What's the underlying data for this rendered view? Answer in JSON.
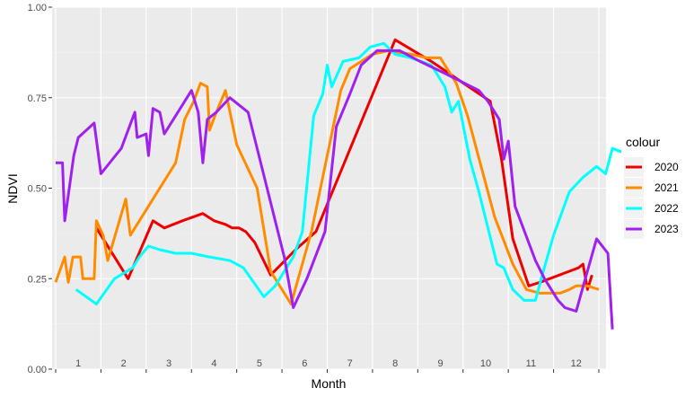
{
  "chart_data": {
    "type": "line",
    "xlabel": "Month",
    "ylabel": "NDVI",
    "xlim": [
      0,
      12
    ],
    "ylim": [
      0,
      1
    ],
    "x_ticks": [
      "1",
      "2",
      "3",
      "4",
      "5",
      "6",
      "7",
      "8",
      "9",
      "10",
      "11",
      "12"
    ],
    "y_ticks": [
      {
        "value": 0.0,
        "label": "0.00"
      },
      {
        "value": 0.25,
        "label": "0.25"
      },
      {
        "value": 0.5,
        "label": "0.50"
      },
      {
        "value": 0.75,
        "label": "0.75"
      },
      {
        "value": 1.0,
        "label": "1.00"
      }
    ],
    "grid": true,
    "legend": {
      "title": "colour",
      "position": "right"
    },
    "series": [
      {
        "name": "2020",
        "color": "#EE0000",
        "points": [
          [
            0.9,
            0.39
          ],
          [
            1.6,
            0.25
          ],
          [
            2.15,
            0.41
          ],
          [
            2.4,
            0.39
          ],
          [
            2.8,
            0.41
          ],
          [
            3.25,
            0.43
          ],
          [
            3.5,
            0.41
          ],
          [
            3.75,
            0.4
          ],
          [
            3.9,
            0.39
          ],
          [
            4.05,
            0.39
          ],
          [
            4.2,
            0.38
          ],
          [
            4.4,
            0.35
          ],
          [
            4.75,
            0.26
          ],
          [
            5.3,
            0.33
          ],
          [
            5.75,
            0.38
          ],
          [
            7.5,
            0.91
          ],
          [
            8.3,
            0.85
          ],
          [
            9.6,
            0.74
          ],
          [
            9.85,
            0.58
          ],
          [
            10.1,
            0.36
          ],
          [
            10.45,
            0.23
          ],
          [
            10.7,
            0.24
          ],
          [
            11.55,
            0.28
          ],
          [
            11.65,
            0.29
          ],
          [
            11.75,
            0.22
          ],
          [
            11.85,
            0.26
          ]
        ]
      },
      {
        "name": "2021",
        "color": "#FF8C00",
        "points": [
          [
            0.0,
            0.24
          ],
          [
            0.2,
            0.31
          ],
          [
            0.28,
            0.24
          ],
          [
            0.38,
            0.31
          ],
          [
            0.55,
            0.31
          ],
          [
            0.6,
            0.25
          ],
          [
            0.85,
            0.25
          ],
          [
            0.9,
            0.41
          ],
          [
            1.05,
            0.37
          ],
          [
            1.15,
            0.3
          ],
          [
            1.55,
            0.47
          ],
          [
            1.65,
            0.37
          ],
          [
            2.1,
            0.46
          ],
          [
            2.65,
            0.57
          ],
          [
            2.85,
            0.69
          ],
          [
            3.05,
            0.74
          ],
          [
            3.2,
            0.79
          ],
          [
            3.35,
            0.78
          ],
          [
            3.4,
            0.66
          ],
          [
            3.55,
            0.71
          ],
          [
            3.75,
            0.77
          ],
          [
            4.0,
            0.62
          ],
          [
            4.45,
            0.5
          ],
          [
            4.75,
            0.27
          ],
          [
            5.2,
            0.18
          ],
          [
            5.65,
            0.38
          ],
          [
            6.1,
            0.65
          ],
          [
            6.3,
            0.77
          ],
          [
            6.5,
            0.83
          ],
          [
            6.75,
            0.85
          ],
          [
            7.0,
            0.87
          ],
          [
            7.35,
            0.88
          ],
          [
            7.85,
            0.87
          ],
          [
            8.2,
            0.86
          ],
          [
            8.5,
            0.86
          ],
          [
            8.85,
            0.79
          ],
          [
            9.1,
            0.7
          ],
          [
            9.4,
            0.56
          ],
          [
            9.7,
            0.42
          ],
          [
            10.1,
            0.29
          ],
          [
            10.4,
            0.22
          ],
          [
            10.7,
            0.21
          ],
          [
            11.15,
            0.21
          ],
          [
            11.35,
            0.22
          ],
          [
            11.5,
            0.23
          ],
          [
            11.65,
            0.23
          ],
          [
            11.75,
            0.23
          ],
          [
            12.0,
            0.22
          ]
        ]
      },
      {
        "name": "2022",
        "color": "#00FFFF",
        "points": [
          [
            0.45,
            0.22
          ],
          [
            0.9,
            0.18
          ],
          [
            1.3,
            0.25
          ],
          [
            1.7,
            0.28
          ],
          [
            1.85,
            0.31
          ],
          [
            2.05,
            0.34
          ],
          [
            2.3,
            0.33
          ],
          [
            2.65,
            0.32
          ],
          [
            3.0,
            0.32
          ],
          [
            3.4,
            0.31
          ],
          [
            3.85,
            0.3
          ],
          [
            4.15,
            0.28
          ],
          [
            4.6,
            0.2
          ],
          [
            4.85,
            0.23
          ],
          [
            5.25,
            0.31
          ],
          [
            5.45,
            0.38
          ],
          [
            5.7,
            0.7
          ],
          [
            5.9,
            0.76
          ],
          [
            6.0,
            0.84
          ],
          [
            6.1,
            0.78
          ],
          [
            6.35,
            0.85
          ],
          [
            6.7,
            0.86
          ],
          [
            6.95,
            0.89
          ],
          [
            7.25,
            0.9
          ],
          [
            7.5,
            0.87
          ],
          [
            7.85,
            0.86
          ],
          [
            8.3,
            0.84
          ],
          [
            8.6,
            0.78
          ],
          [
            8.75,
            0.71
          ],
          [
            8.9,
            0.74
          ],
          [
            9.15,
            0.58
          ],
          [
            9.35,
            0.49
          ],
          [
            9.55,
            0.39
          ],
          [
            9.75,
            0.29
          ],
          [
            9.9,
            0.28
          ],
          [
            10.1,
            0.22
          ],
          [
            10.35,
            0.19
          ],
          [
            10.6,
            0.19
          ],
          [
            10.75,
            0.26
          ],
          [
            11.0,
            0.37
          ],
          [
            11.35,
            0.49
          ],
          [
            11.65,
            0.53
          ],
          [
            11.95,
            0.56
          ],
          [
            12.15,
            0.54
          ],
          [
            12.3,
            0.61
          ],
          [
            12.5,
            0.6
          ]
        ]
      },
      {
        "name": "2023",
        "color": "#A020F0",
        "points": [
          [
            0.0,
            0.57
          ],
          [
            0.15,
            0.57
          ],
          [
            0.2,
            0.41
          ],
          [
            0.4,
            0.59
          ],
          [
            0.5,
            0.64
          ],
          [
            0.85,
            0.68
          ],
          [
            1.0,
            0.54
          ],
          [
            1.45,
            0.61
          ],
          [
            1.75,
            0.71
          ],
          [
            1.8,
            0.64
          ],
          [
            2.0,
            0.65
          ],
          [
            2.05,
            0.59
          ],
          [
            2.15,
            0.72
          ],
          [
            2.3,
            0.71
          ],
          [
            2.4,
            0.65
          ],
          [
            3.0,
            0.77
          ],
          [
            3.15,
            0.71
          ],
          [
            3.25,
            0.57
          ],
          [
            3.35,
            0.69
          ],
          [
            3.55,
            0.71
          ],
          [
            3.85,
            0.75
          ],
          [
            4.25,
            0.71
          ],
          [
            4.55,
            0.56
          ],
          [
            5.05,
            0.31
          ],
          [
            5.25,
            0.17
          ],
          [
            5.55,
            0.25
          ],
          [
            5.95,
            0.38
          ],
          [
            6.2,
            0.67
          ],
          [
            6.5,
            0.76
          ],
          [
            6.75,
            0.84
          ],
          [
            7.1,
            0.88
          ],
          [
            7.6,
            0.88
          ],
          [
            8.05,
            0.85
          ],
          [
            8.55,
            0.82
          ],
          [
            9.35,
            0.77
          ],
          [
            9.55,
            0.74
          ],
          [
            9.8,
            0.69
          ],
          [
            9.9,
            0.58
          ],
          [
            10.0,
            0.63
          ],
          [
            10.15,
            0.45
          ],
          [
            10.6,
            0.3
          ],
          [
            10.8,
            0.25
          ],
          [
            11.1,
            0.19
          ],
          [
            11.25,
            0.17
          ],
          [
            11.5,
            0.16
          ],
          [
            11.7,
            0.25
          ],
          [
            11.95,
            0.36
          ],
          [
            12.2,
            0.32
          ],
          [
            12.3,
            0.11
          ]
        ]
      }
    ]
  }
}
